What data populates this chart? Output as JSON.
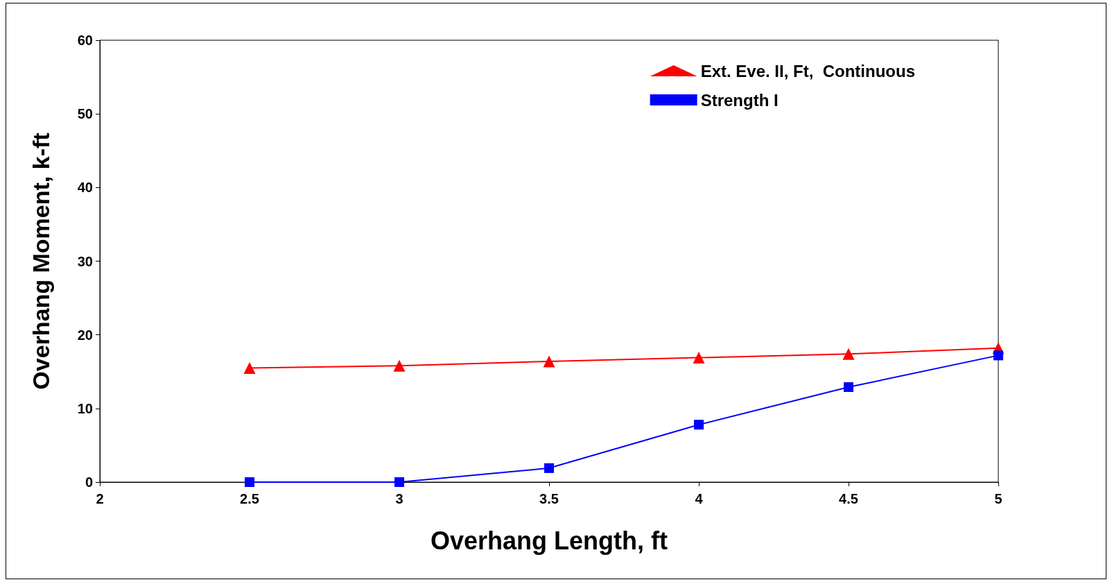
{
  "chart_data": {
    "type": "line",
    "xlabel": "Overhang Length, ft",
    "ylabel": "Overhang Moment, k-ft",
    "x": [
      2.5,
      3,
      3.5,
      4,
      4.5,
      5
    ],
    "series": [
      {
        "name": "Ext. Eve. II, Ft,  Continuous",
        "color": "#ff0000",
        "marker": "triangle",
        "values": [
          15.5,
          15.8,
          16.4,
          16.9,
          17.4,
          18.2
        ]
      },
      {
        "name": "Strength I",
        "color": "#0000ff",
        "marker": "square",
        "values": [
          0,
          0,
          1.9,
          7.8,
          12.9,
          17.2
        ]
      }
    ],
    "xlim": [
      2,
      5
    ],
    "xticks": [
      2,
      2.5,
      3,
      3.5,
      4,
      4.5,
      5
    ],
    "ylim": [
      0,
      60
    ],
    "yticks": [
      0,
      10,
      20,
      30,
      40,
      50,
      60
    ],
    "grid": false,
    "legend": "top right",
    "line_style": "solid"
  }
}
